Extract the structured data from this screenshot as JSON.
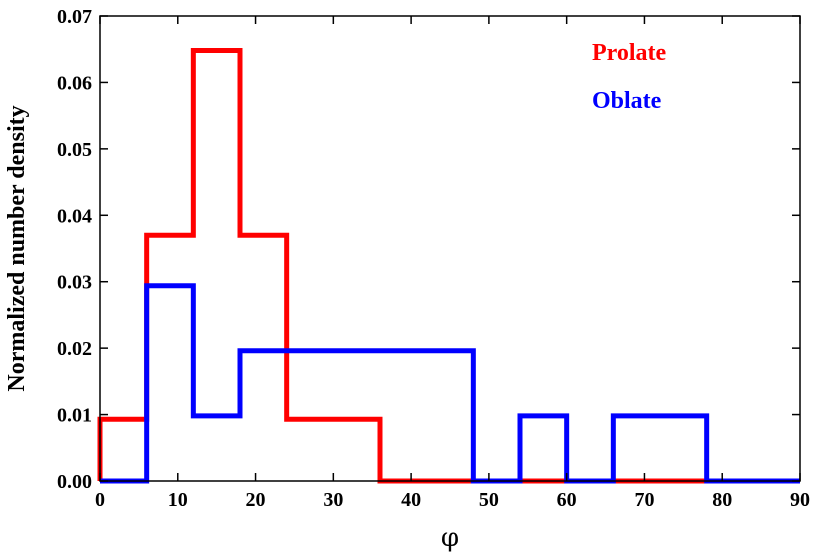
{
  "chart_data": {
    "type": "histogram",
    "xlabel": "φ",
    "ylabel": "Normalized number density",
    "xlim": [
      0,
      90
    ],
    "ylim": [
      0,
      0.07
    ],
    "xticks": [
      "0",
      "10",
      "20",
      "30",
      "40",
      "50",
      "60",
      "70",
      "80",
      "90"
    ],
    "yticks": [
      "0.00",
      "0.01",
      "0.02",
      "0.03",
      "0.04",
      "0.05",
      "0.06",
      "0.07"
    ],
    "legend_position": "top-right",
    "series": [
      {
        "name": "Prolate",
        "color": "#ff0000",
        "bins": [
          0,
          6,
          12,
          18,
          24,
          30,
          36,
          42,
          48,
          54,
          60,
          66,
          72,
          78,
          84,
          90
        ],
        "values": [
          0.0093,
          0.037,
          0.0648,
          0.037,
          0.0093,
          0.0093,
          0.0,
          0.0,
          0.0,
          0.0,
          0.0,
          0.0,
          0.0,
          0.0,
          0.0
        ]
      },
      {
        "name": "Oblate",
        "color": "#0000ff",
        "bins": [
          0,
          6,
          12,
          18,
          24,
          30,
          36,
          42,
          48,
          54,
          60,
          66,
          72,
          78,
          84,
          90
        ],
        "values": [
          0.0,
          0.0294,
          0.0098,
          0.0196,
          0.0196,
          0.0196,
          0.0196,
          0.0196,
          0.0,
          0.0098,
          0.0,
          0.0098,
          0.0098,
          0.0,
          0.0
        ]
      }
    ]
  }
}
